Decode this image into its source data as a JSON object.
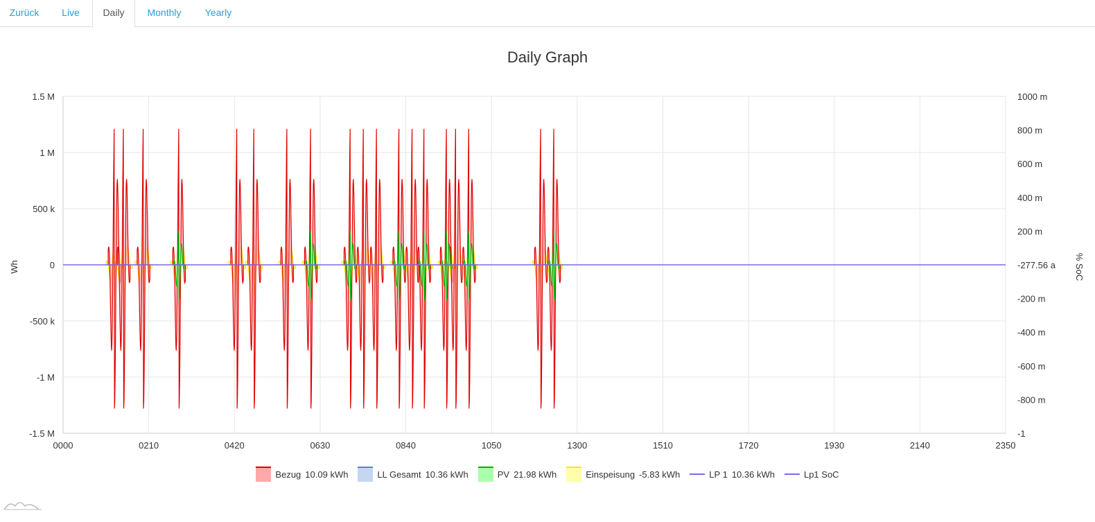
{
  "tabs": [
    {
      "label": "Zurück",
      "active": false
    },
    {
      "label": "Live",
      "active": false
    },
    {
      "label": "Daily",
      "active": true
    },
    {
      "label": "Monthly",
      "active": false
    },
    {
      "label": "Yearly",
      "active": false
    }
  ],
  "chart_data": {
    "type": "area",
    "title": "Daily Graph",
    "ylabel": "Wh",
    "y2label": "% SoC",
    "x_ticks": [
      "0000",
      "0210",
      "0420",
      "0630",
      "0840",
      "1050",
      "1300",
      "1510",
      "1720",
      "1930",
      "2140",
      "2350"
    ],
    "y_ticks": [
      "1.5 M",
      "1 M",
      "500 k",
      "0",
      "-500 k",
      "-1 M",
      "-1.5 M"
    ],
    "y2_ticks": [
      "1000 m",
      "800 m",
      "600 m",
      "400 m",
      "200 m",
      "-277.56 a",
      "-200 m",
      "-400 m",
      "-600 m",
      "-800 m",
      "-1"
    ],
    "ylim": [
      -1500000,
      1500000
    ],
    "y2lim": [
      -1,
      1
    ],
    "grid": true,
    "legend_position": "bottom",
    "series": [
      {
        "name": "Bezug",
        "total": "10.09 kWh",
        "color": "#e00000",
        "fill": "#ffaaaa",
        "style": "area",
        "peak_wh": 1280000,
        "peak_minutes": [
          78,
          92,
          122,
          176,
          264,
          290,
          340,
          376,
          436,
          456,
          476,
          510,
          530,
          548,
          582,
          596,
          616,
          725,
          745
        ],
        "half_width_min": 6
      },
      {
        "name": "LL Gesamt",
        "total": "10.36 kWh",
        "color": "#4a86e8",
        "fill": "#c5d6f0",
        "style": "area"
      },
      {
        "name": "PV",
        "total": "21.98 kWh",
        "color": "#00b400",
        "fill": "#aaffaa",
        "style": "area",
        "peak_wh": 320000,
        "peak_minutes": [
          176,
          376,
          436,
          510,
          548,
          582,
          616,
          745
        ],
        "half_width_min": 5
      },
      {
        "name": "Einspeisung",
        "total": "-5.83 kWh",
        "color": "#ffe800",
        "fill": "#ffffaa",
        "style": "area",
        "peak_wh": 270000,
        "peak_minutes": [
          78,
          92,
          122,
          176,
          264,
          290,
          340,
          376,
          436,
          456,
          476,
          510,
          530,
          548,
          582,
          596,
          616,
          725,
          745
        ],
        "half_width_min": 8
      },
      {
        "name": "LP 1",
        "total": "10.36 kWh",
        "color": "#7b68ee",
        "style": "line",
        "value_wh": 0
      },
      {
        "name": "Lp1 SoC",
        "total": "",
        "color": "#7b68ee",
        "style": "line"
      }
    ],
    "x_range_minutes": [
      0,
      1430
    ]
  }
}
